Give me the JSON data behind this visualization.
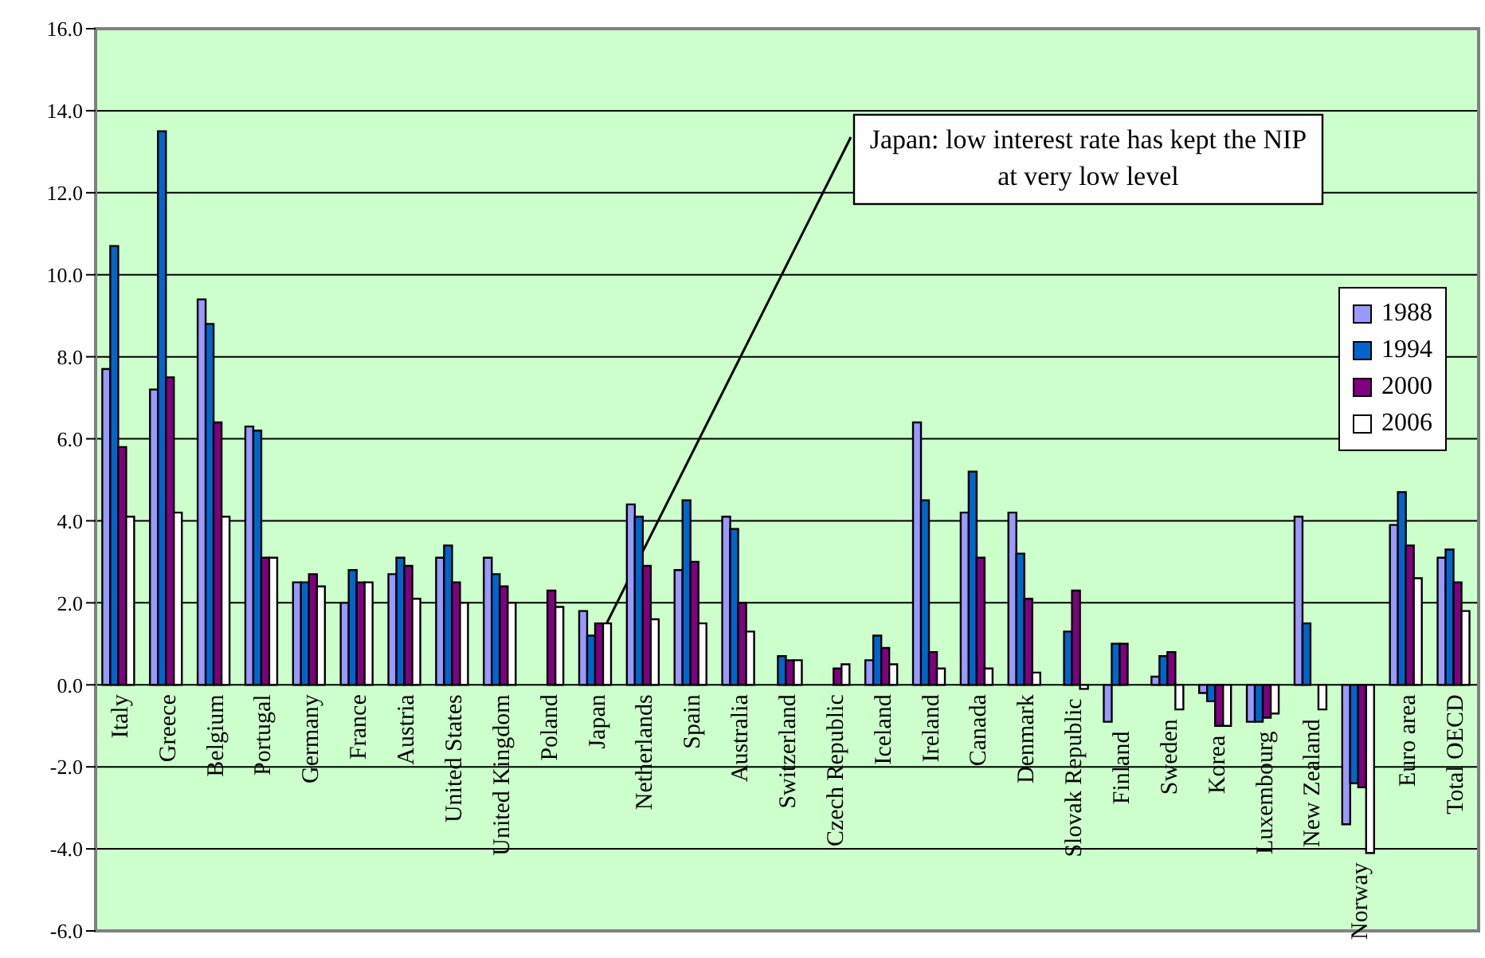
{
  "chart_data": {
    "type": "bar",
    "categories": [
      "Italy",
      "Greece",
      "Belgium",
      "Portugal",
      "Germany",
      "France",
      "Austria",
      "United States",
      "United Kingdom",
      "Poland",
      "Japan",
      "Netherlands",
      "Spain",
      "Australia",
      "Switzerland",
      "Czech Republic",
      "Iceland",
      "Ireland",
      "Canada",
      "Denmark",
      "Slovak Republic",
      "Finland",
      "Sweden",
      "Korea",
      "Luxembourg",
      "New Zealand",
      "Norway",
      "Euro area",
      "Total OECD"
    ],
    "series": [
      {
        "name": "1988",
        "color": "#9999ff",
        "values": [
          7.7,
          7.2,
          9.4,
          6.3,
          2.5,
          2.0,
          2.7,
          3.1,
          3.1,
          null,
          1.8,
          4.4,
          2.8,
          4.1,
          null,
          null,
          0.6,
          6.4,
          4.2,
          4.2,
          null,
          -0.9,
          0.2,
          -0.2,
          -0.9,
          4.1,
          -3.4,
          3.9,
          3.1
        ]
      },
      {
        "name": "1994",
        "color": "#0066cc",
        "values": [
          10.7,
          13.5,
          8.8,
          6.2,
          2.5,
          2.8,
          3.1,
          3.4,
          2.7,
          null,
          1.2,
          4.1,
          4.5,
          3.8,
          0.7,
          null,
          1.2,
          4.5,
          5.2,
          3.2,
          1.3,
          1.0,
          0.7,
          -0.4,
          -0.9,
          1.5,
          -2.4,
          4.7,
          3.3
        ]
      },
      {
        "name": "2000",
        "color": "#800080",
        "values": [
          5.8,
          7.5,
          6.4,
          3.1,
          2.7,
          2.5,
          2.9,
          2.5,
          2.4,
          2.3,
          1.5,
          2.9,
          3.0,
          2.0,
          0.6,
          0.4,
          0.9,
          0.8,
          3.1,
          2.1,
          2.3,
          1.0,
          0.8,
          -1.0,
          -0.8,
          null,
          -2.5,
          3.4,
          2.5
        ]
      },
      {
        "name": "2006",
        "color": "#ffffff",
        "values": [
          4.1,
          4.2,
          4.1,
          3.1,
          2.4,
          2.5,
          2.1,
          2.0,
          2.0,
          1.9,
          1.5,
          1.6,
          1.5,
          1.3,
          0.6,
          0.5,
          0.5,
          0.4,
          0.4,
          0.3,
          -0.1,
          null,
          -0.6,
          -1.0,
          -0.7,
          -0.6,
          -4.1,
          2.6,
          1.8
        ]
      }
    ],
    "ylim": [
      -6,
      16
    ],
    "yticks": [
      {
        "value": -6,
        "label": "-6.0"
      },
      {
        "value": -4,
        "label": "-4.0"
      },
      {
        "value": -2,
        "label": "-2.0"
      },
      {
        "value": 0,
        "label": "0.0"
      },
      {
        "value": 2,
        "label": "2.0"
      },
      {
        "value": 4,
        "label": "4.0"
      },
      {
        "value": 6,
        "label": "6.0"
      },
      {
        "value": 8,
        "label": "8.0"
      },
      {
        "value": 10,
        "label": "10.0"
      },
      {
        "value": 12,
        "label": "12.0"
      },
      {
        "value": 14,
        "label": "14.0"
      },
      {
        "value": 16,
        "label": "16.0"
      }
    ],
    "grid": "y",
    "legend": "right",
    "annotations": [
      {
        "text": "Japan: low interest rate has kept the NIP at very low level",
        "x": "Japan",
        "y": 1.0
      }
    ]
  }
}
